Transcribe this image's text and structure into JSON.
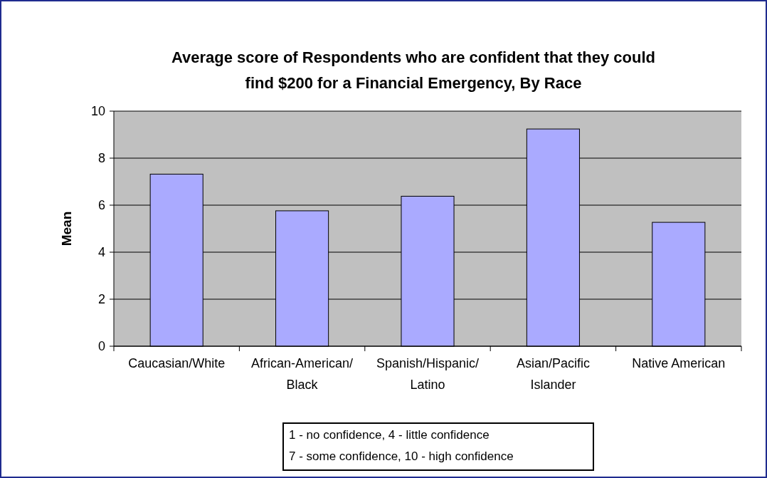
{
  "chart_data": {
    "type": "bar",
    "title": "Average score of Respondents who are confident that they could find $200 for a Financial Emergency, By Race",
    "ylabel": "Mean",
    "categories": [
      "Caucasian/White",
      "African-American/ Black",
      "Spanish/Hispanic/ Latino",
      "Asian/Pacific Islander",
      "Native American"
    ],
    "values": [
      7.32,
      5.76,
      6.38,
      9.24,
      5.27
    ],
    "color": "#aaaaff",
    "ylim": [
      0,
      10
    ],
    "yticks": [
      0,
      2,
      4,
      6,
      8,
      10
    ],
    "grid": "y",
    "annotations": [
      "1 - no confidence, 4 - little confidence",
      "7 - some confidence, 10 - high confidence"
    ]
  }
}
